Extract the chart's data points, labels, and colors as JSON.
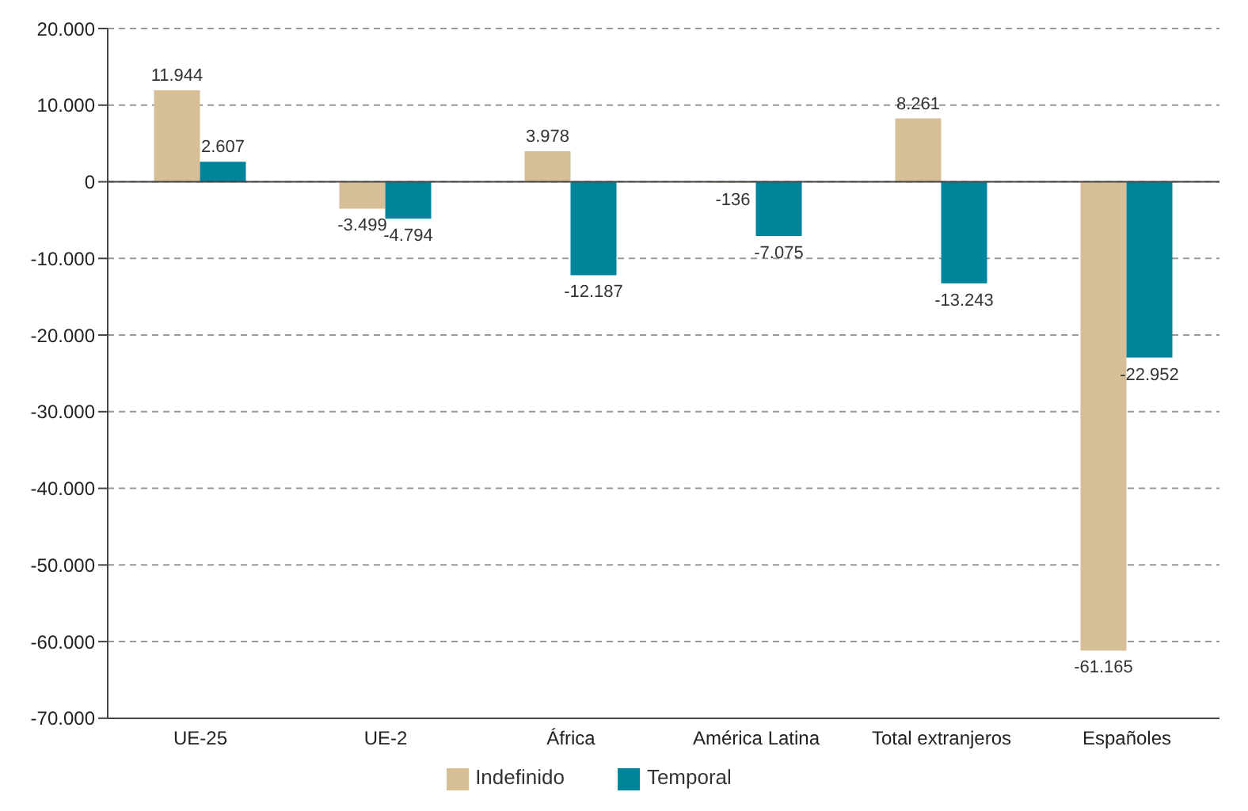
{
  "chart_data": {
    "type": "bar",
    "categories": [
      "UE-25",
      "UE-2",
      "África",
      "América Latina",
      "Total extranjeros",
      "Españoles"
    ],
    "series": [
      {
        "name": "Indefinido",
        "color": "#d6bf96",
        "values": [
          11944,
          -3499,
          3978,
          -136,
          8261,
          -61165
        ],
        "value_labels": [
          "11.944",
          "-3.499",
          "3.978",
          "-136",
          "8.261",
          "-61.165"
        ]
      },
      {
        "name": "Temporal",
        "color": "#00849b",
        "values": [
          2607,
          -4794,
          -12187,
          -7075,
          -13243,
          -22952
        ],
        "value_labels": [
          "2.607",
          "-4.794",
          "-12.187",
          "-7.075",
          "-13.243",
          "-22.952"
        ]
      }
    ],
    "ylim": [
      -70000,
      20000
    ],
    "yticks": [
      {
        "value": -70000,
        "label": "-70.000"
      },
      {
        "value": -60000,
        "label": "-60.000"
      },
      {
        "value": -50000,
        "label": "-50.000"
      },
      {
        "value": -40000,
        "label": "-40.000"
      },
      {
        "value": -30000,
        "label": "-30.000"
      },
      {
        "value": -20000,
        "label": "-20.000"
      },
      {
        "value": -10000,
        "label": "-10.000"
      },
      {
        "value": 0,
        "label": "0"
      },
      {
        "value": 10000,
        "label": "10.000"
      },
      {
        "value": 20000,
        "label": "20.000"
      }
    ],
    "grid": "y",
    "legend": "bottom"
  }
}
